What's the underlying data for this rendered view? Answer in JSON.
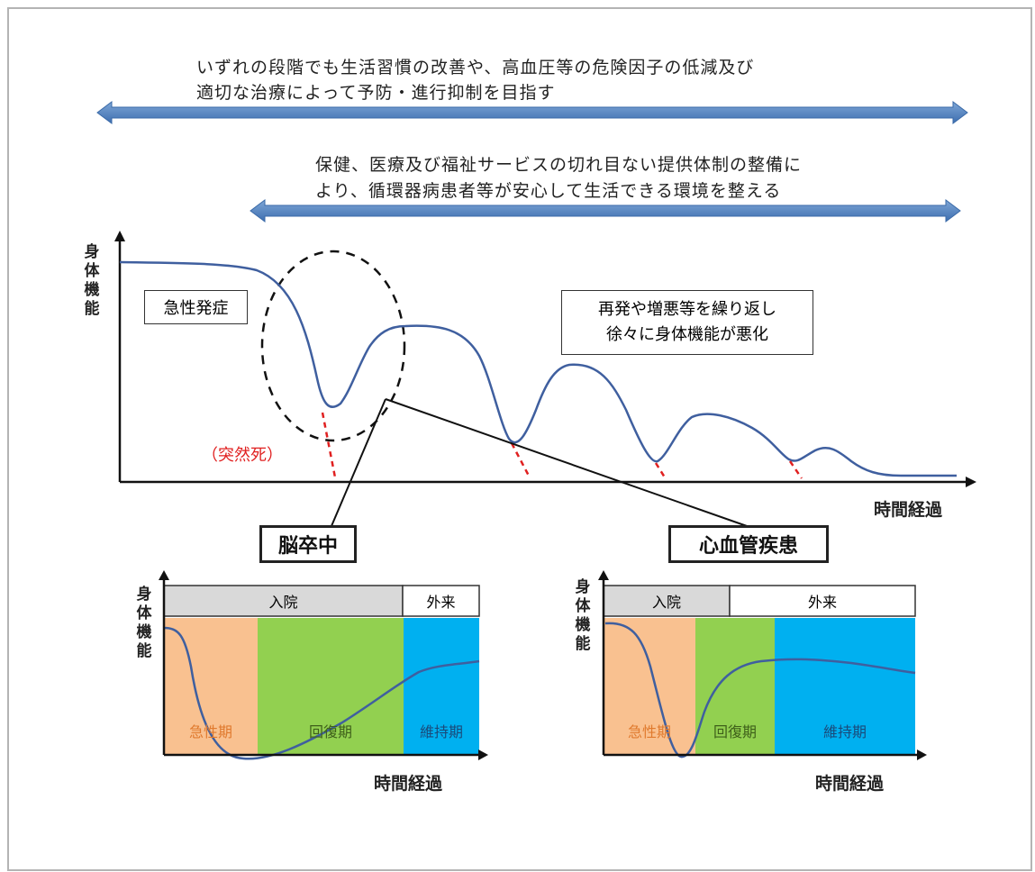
{
  "top_arrow_1": {
    "line1": "いずれの段階でも生活習慣の改善や、高血圧等の危険因子の低減及び",
    "line2": "適切な治療によって予防・進行抑制を目指す"
  },
  "top_arrow_2": {
    "line1": "保健、医療及び福祉サービスの切れ目ない提供体制の整備に",
    "line2": "より、循環器病患者等が安心して生活できる環境を整える"
  },
  "main_chart": {
    "y_label": "身体機能",
    "x_label": "時間経過",
    "acute_onset_label": "急性発症",
    "recurrence_label_1": "再発や増悪等を繰り返し",
    "recurrence_label_2": "徐々に身体機能が悪化",
    "sudden_death_label": "（突然死）"
  },
  "stroke_panel": {
    "title": "脳卒中",
    "y_label": "身体機能",
    "x_label": "時間経過",
    "header_inpatient": "入院",
    "header_outpatient": "外来",
    "phase_acute": "急性期",
    "phase_recovery": "回復期",
    "phase_maintenance": "維持期"
  },
  "cardio_panel": {
    "title": "心血管疾患",
    "y_label": "身体機能",
    "x_label": "時間経過",
    "header_inpatient": "入院",
    "header_outpatient": "外来",
    "phase_acute": "急性期",
    "phase_recovery": "回復期",
    "phase_maintenance": "維持期"
  },
  "colors": {
    "arrow_blue": "#4f81bd",
    "curve_blue": "#3f5f9f",
    "acute_orange": "#f9c190",
    "recovery_green": "#92d050",
    "maintenance_blue": "#00b0f0",
    "header_gray": "#d9d9d9",
    "sudden_death_red": "#e02020"
  }
}
